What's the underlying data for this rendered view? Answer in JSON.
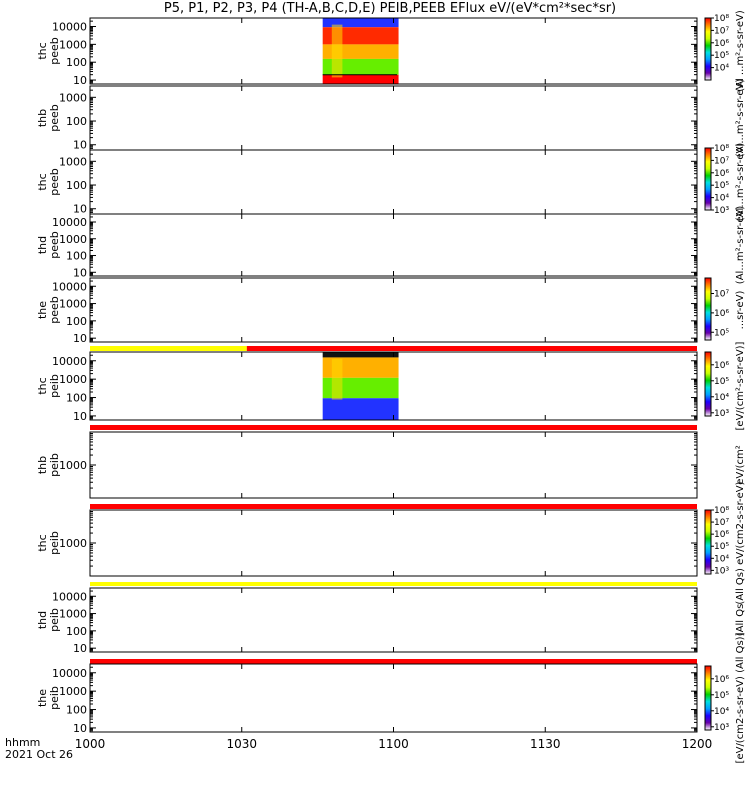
{
  "title": "P5, P1, P2, P3, P4 (TH-A,B,C,D,E) PEIB,PEEB EFlux eV/(eV*cm²*sec*sr)",
  "time_axis": {
    "label_line1": "hhmm",
    "label_line2": "2021 Oct 26",
    "ticks": [
      "1000",
      "1030",
      "1100",
      "1130",
      "1200"
    ],
    "tick_minutes": [
      0,
      30,
      60,
      90,
      120
    ],
    "range_minutes": [
      0,
      120
    ]
  },
  "colors": {
    "spectrogram_top": "#2233ff",
    "spectrogram_high": "#ff2a00",
    "spectrogram_mid": "#ffb000",
    "spectrogram_low": "#66ee00",
    "flag_red": "#ff0000",
    "flag_yellow": "#ffff00"
  },
  "colorbar_stops": [
    "#ffffff",
    "#6a00a8",
    "#1e00ff",
    "#00a0ff",
    "#00e0e0",
    "#00d000",
    "#c8ff00",
    "#ffff00",
    "#ff8000",
    "#ff0000"
  ],
  "chart_data": {
    "type": "heatmap",
    "panels": [
      {
        "ylabel1": "thc",
        "ylabel2": "peeb",
        "yticks": [
          "10",
          "100",
          "1000",
          "10000"
        ],
        "ytick_values": [
          10,
          100,
          1000,
          10000
        ],
        "ylim": [
          6,
          30000
        ],
        "data_window_minutes": [
          46,
          61
        ],
        "cbar_label": "(Al ...m²-s-sr-eV)",
        "cbar_ticks": [
          "10⁴",
          "10⁵",
          "10⁶",
          "10⁷",
          "10⁸"
        ],
        "cbar_exps": [
          4,
          5,
          6,
          7,
          8
        ],
        "cbar_range": [
          3,
          8
        ]
      },
      {
        "ylabel1": "thb",
        "ylabel2": "peeb",
        "yticks": [
          "10",
          "100",
          "1000"
        ],
        "ytick_values": [
          10,
          100,
          1000
        ],
        "ylim": [
          6,
          3000
        ],
        "data_window_minutes": null,
        "cbar_label": "(Al...m²-s-sr-eV)",
        "cbar_ticks": [],
        "cbar_exps": [],
        "cbar_range": null
      },
      {
        "ylabel1": "thc",
        "ylabel2": "peeb",
        "yticks": [
          "10",
          "100",
          "1000"
        ],
        "ytick_values": [
          10,
          100,
          1000
        ],
        "ylim": [
          6,
          3000
        ],
        "data_window_minutes": null,
        "cbar_label": "(Al...m²-s-sr-eV)",
        "cbar_ticks": [
          "10³",
          "10⁴",
          "10⁵",
          "10⁶",
          "10⁷",
          "10⁸"
        ],
        "cbar_exps": [
          3,
          4,
          5,
          6,
          7,
          8
        ],
        "cbar_range": [
          3,
          8
        ]
      },
      {
        "ylabel1": "thd",
        "ylabel2": "peeb",
        "yticks": [
          "10",
          "100",
          "1000",
          "10000"
        ],
        "ytick_values": [
          10,
          100,
          1000,
          10000
        ],
        "ylim": [
          6,
          30000
        ],
        "data_window_minutes": null,
        "cbar_label": "(Al...m²-s-sr-eV)",
        "cbar_ticks": [],
        "cbar_exps": [],
        "cbar_range": null
      },
      {
        "ylabel1": "the",
        "ylabel2": "peeb",
        "yticks": [
          "10",
          "100",
          "1000",
          "10000"
        ],
        "ytick_values": [
          10,
          100,
          1000,
          10000
        ],
        "ylim": [
          6,
          30000
        ],
        "data_window_minutes": null,
        "cbar_label": "...sr-eV)",
        "cbar_ticks": [
          "10⁵",
          "10⁶",
          "10⁷"
        ],
        "cbar_exps": [
          5,
          6,
          7
        ],
        "cbar_range": [
          4.6,
          7.8
        ]
      },
      {
        "ylabel1": "thc",
        "ylabel2": "peib",
        "yticks": [
          "10",
          "100",
          "1000",
          "10000"
        ],
        "ytick_values": [
          10,
          100,
          1000,
          10000
        ],
        "ylim": [
          6,
          30000
        ],
        "data_window_minutes": [
          46,
          61
        ],
        "cbar_label": "[eV/(cm²-s-sr-eV)]",
        "cbar_ticks": [
          "10³",
          "10⁴",
          "10⁵",
          "10⁶"
        ],
        "cbar_exps": [
          3,
          4,
          5,
          6
        ],
        "cbar_range": [
          2.8,
          6.8
        ]
      },
      {
        "ylabel1": "thb",
        "ylabel2": "peib",
        "yticks": [
          "1000"
        ],
        "ytick_values": [
          1000
        ],
        "ylim": [
          100,
          10000
        ],
        "data_window_minutes": null,
        "cbar_label": "eV/(cm²",
        "cbar_ticks": [],
        "cbar_exps": [],
        "cbar_range": null
      },
      {
        "ylabel1": "thc",
        "ylabel2": "peib",
        "yticks": [
          "1000"
        ],
        "ytick_values": [
          1000
        ],
        "ylim": [
          100,
          10000
        ],
        "data_window_minutes": null,
        "cbar_label": "(All Qs) eV/(cm2-s-sr-eV)",
        "cbar_ticks": [
          "10³",
          "10⁴",
          "10⁵",
          "10⁶",
          "10⁷",
          "10⁸"
        ],
        "cbar_exps": [
          3,
          4,
          5,
          6,
          7,
          8
        ],
        "cbar_range": [
          2.7,
          8
        ]
      },
      {
        "ylabel1": "thd",
        "ylabel2": "peib",
        "yticks": [
          "10",
          "100",
          "1000",
          "10000"
        ],
        "ytick_values": [
          10,
          100,
          1000,
          10000
        ],
        "ylim": [
          6,
          30000
        ],
        "data_window_minutes": null,
        "cbar_label": "(All Qs",
        "cbar_ticks": [],
        "cbar_exps": [],
        "cbar_range": null
      },
      {
        "ylabel1": "the",
        "ylabel2": "peib",
        "yticks": [
          "10",
          "100",
          "1000",
          "10000"
        ],
        "ytick_values": [
          10,
          100,
          1000,
          10000
        ],
        "ylim": [
          6,
          30000
        ],
        "data_window_minutes": null,
        "cbar_label": "[eV/(cm2-s-sr-eV) (All Qs)]",
        "cbar_ticks": [
          "10³",
          "10⁴",
          "10⁵",
          "10⁶"
        ],
        "cbar_exps": [
          3,
          4,
          5,
          6
        ],
        "cbar_range": [
          2.8,
          6.8
        ]
      }
    ],
    "flag_bars": [
      {
        "after_panel": 5,
        "segments": [
          {
            "from": 0,
            "to": 31,
            "color": "yellow"
          },
          {
            "from": 31,
            "to": 120,
            "color": "red"
          }
        ]
      },
      {
        "after_panel": 6,
        "segments": [
          {
            "from": 0,
            "to": 120,
            "color": "red"
          }
        ]
      },
      {
        "after_panel": 7,
        "segments": [
          {
            "from": 0,
            "to": 120,
            "color": "red"
          }
        ]
      },
      {
        "after_panel": 8,
        "segments": [
          {
            "from": 0,
            "to": 120,
            "color": "yellow"
          }
        ]
      },
      {
        "after_panel": 9,
        "segments": [
          {
            "from": 0,
            "to": 120,
            "color": "red"
          }
        ]
      }
    ]
  }
}
